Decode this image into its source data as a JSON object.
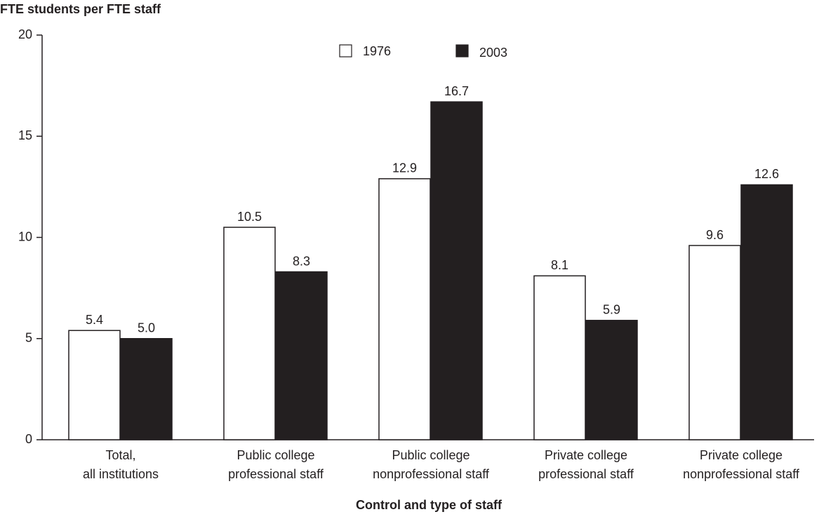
{
  "chart_data": {
    "type": "bar",
    "title": "FTE students per FTE staff",
    "x_label": "Control and type of staff",
    "categories": [
      [
        "Total,",
        "all institutions"
      ],
      [
        "Public college",
        "professional staff"
      ],
      [
        "Public college",
        "nonprofessional staff"
      ],
      [
        "Private college",
        "professional staff"
      ],
      [
        "Private college",
        "nonprofessional staff"
      ]
    ],
    "series": [
      {
        "name": "1976",
        "color": "#ffffff",
        "values": [
          5.4,
          10.5,
          12.9,
          8.1,
          9.6
        ],
        "value_labels": [
          "5.4",
          "10.5",
          "12.9",
          "8.1",
          "9.6"
        ]
      },
      {
        "name": "2003",
        "color": "#231f20",
        "values": [
          5.0,
          8.3,
          16.7,
          5.9,
          12.6
        ],
        "value_labels": [
          "5.0",
          "8.3",
          "16.7",
          "5.9",
          "12.6"
        ]
      }
    ],
    "ylim": [
      0,
      20
    ],
    "yticks": [
      0,
      5,
      10,
      15,
      20
    ]
  }
}
